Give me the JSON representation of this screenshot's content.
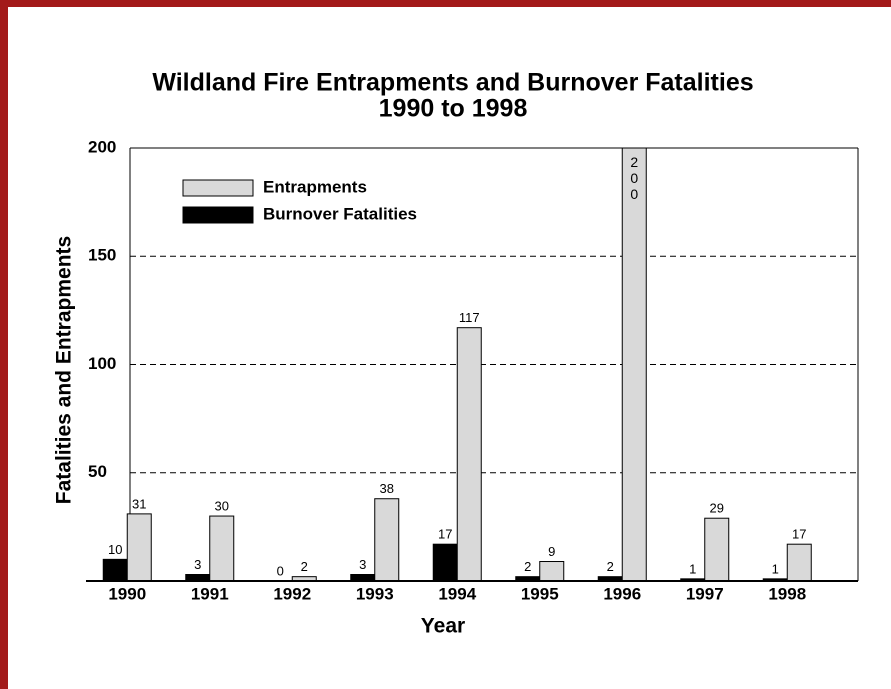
{
  "chart_data": {
    "type": "bar",
    "title": "Wildland Fire Entrapments and Burnover Fatalities",
    "subtitle": "1990 to 1998",
    "x_label": "Year",
    "y_label": "Fatalities and Entrapments",
    "categories": [
      "1990",
      "1991",
      "1992",
      "1993",
      "1994",
      "1995",
      "1996",
      "1997",
      "1998"
    ],
    "series": [
      {
        "name": "Entrapments",
        "color": "#d9d9d9",
        "values": [
          31,
          30,
          2,
          38,
          117,
          9,
          200,
          29,
          17
        ]
      },
      {
        "name": "Burnover Fatalities",
        "color": "#000000",
        "values": [
          10,
          3,
          0,
          3,
          17,
          2,
          2,
          1,
          1
        ]
      }
    ],
    "ylim": [
      0,
      200
    ],
    "yticks": [
      0,
      50,
      100,
      150,
      200
    ],
    "grid": true,
    "legend": "upper left"
  }
}
